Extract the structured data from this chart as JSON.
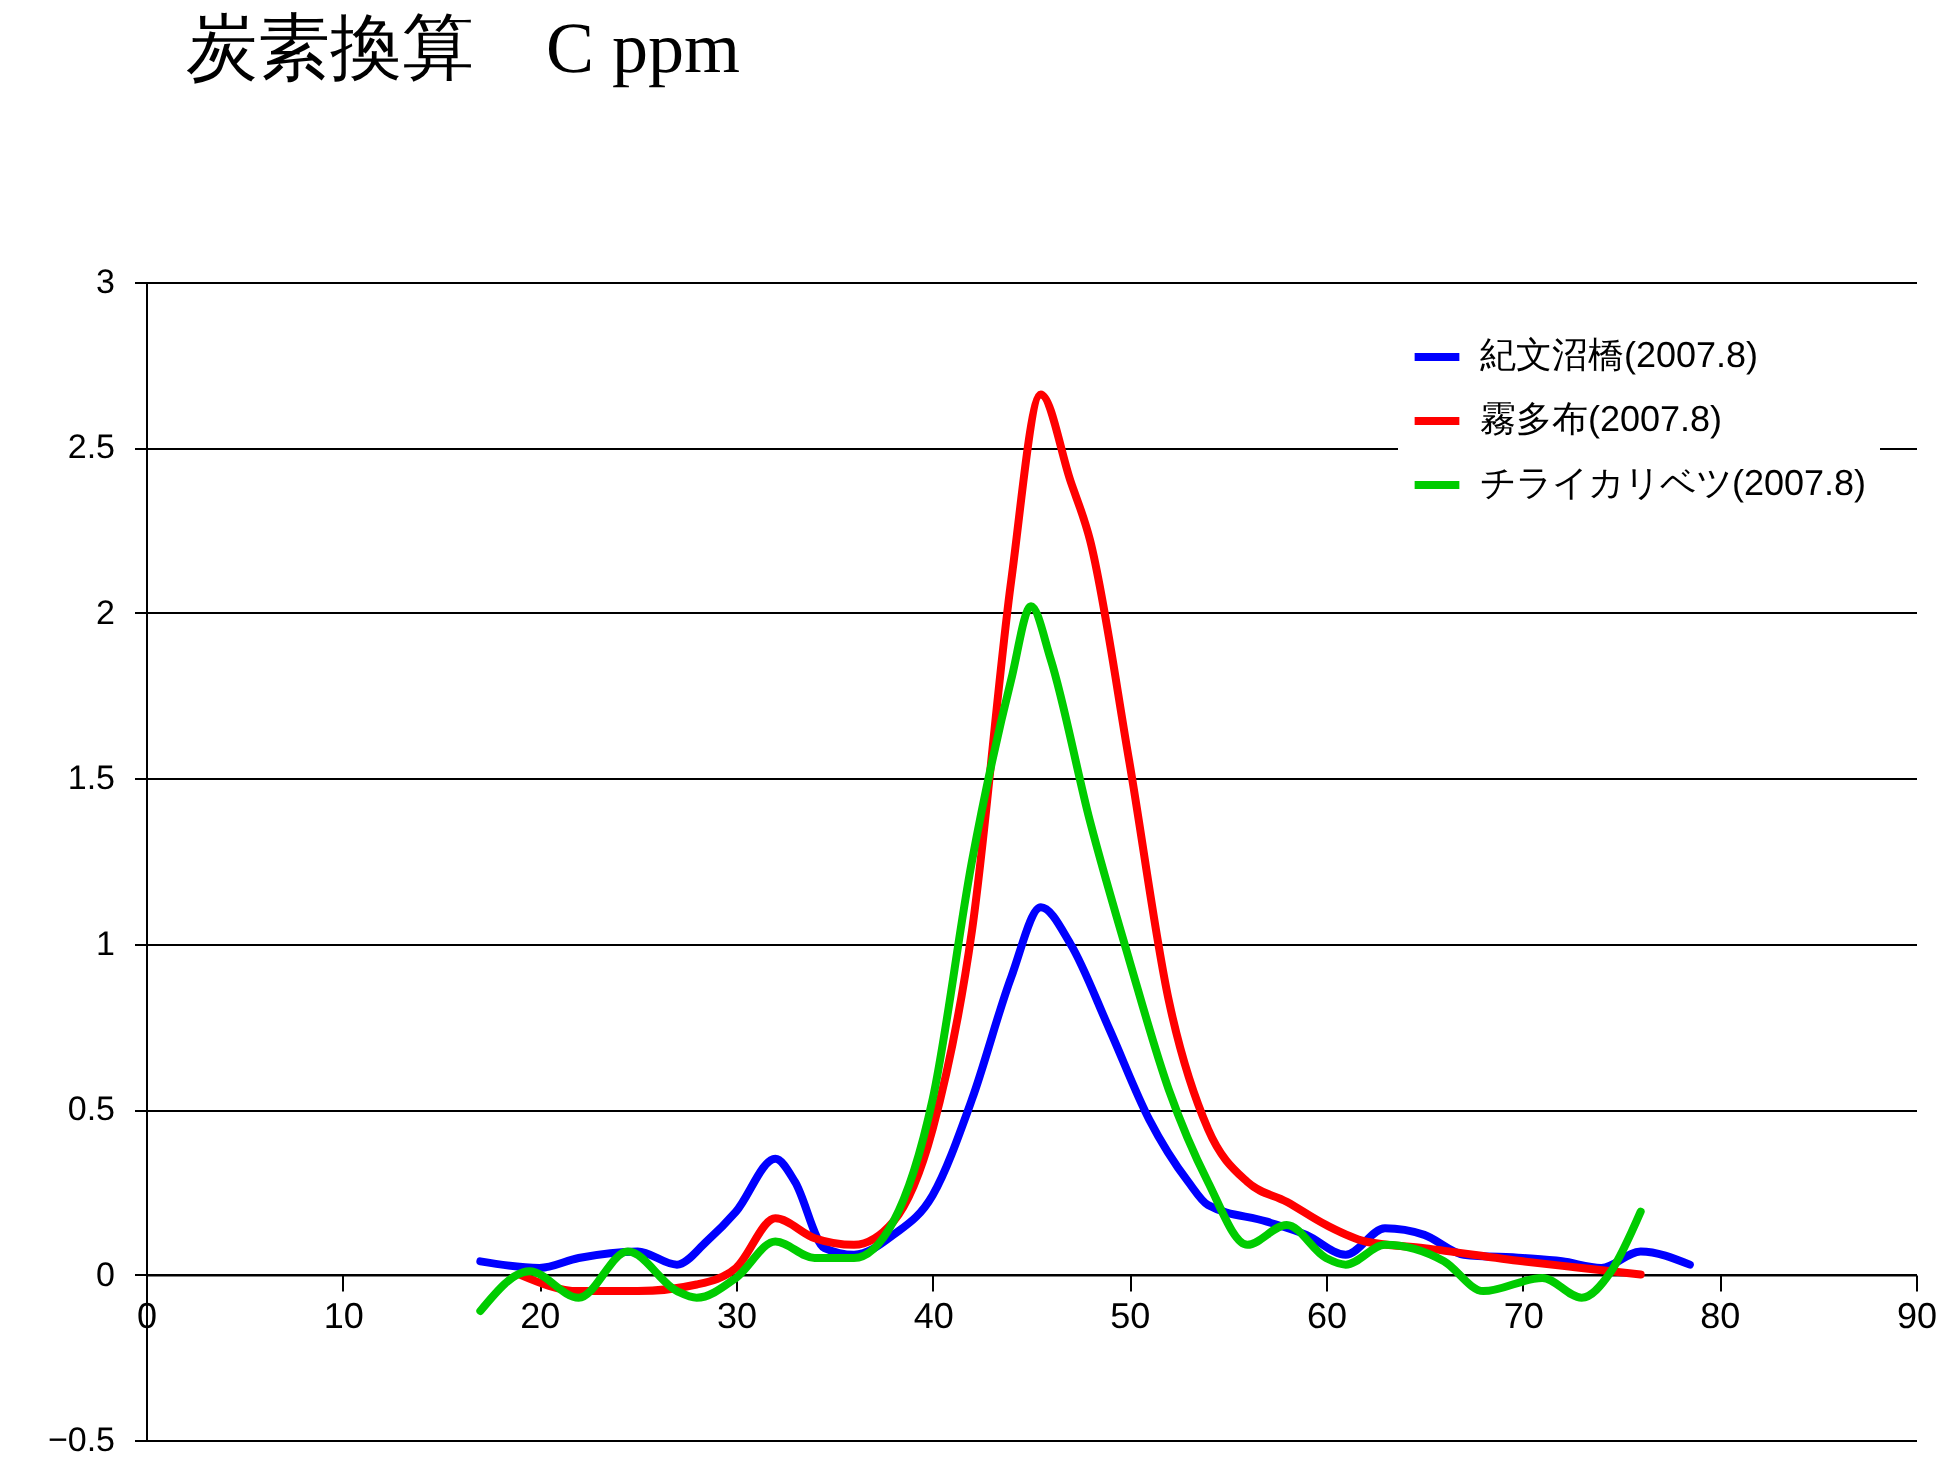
{
  "chart_data": {
    "type": "line",
    "title": "炭素換算　C ppm",
    "xlim": [
      0,
      90
    ],
    "xticks": [
      0,
      10,
      20,
      30,
      40,
      50,
      60,
      70,
      80,
      90
    ],
    "ylim": [
      -0.5,
      3
    ],
    "yticks": [
      -0.5,
      0,
      0.5,
      1,
      1.5,
      2,
      2.5,
      3
    ],
    "grid": "y",
    "legend": "top right",
    "marker": "none",
    "line_style": "solid",
    "series": [
      {
        "name": "紀文沼橋(2007.8)",
        "color": "#0000ff",
        "x": [
          17,
          20,
          22,
          25,
          27,
          28.5,
          30,
          32,
          33,
          34.5,
          36,
          38,
          40,
          42,
          44,
          45.5,
          47,
          49,
          51,
          53,
          54,
          57,
          59,
          61,
          63,
          65,
          67,
          70,
          72,
          74,
          76,
          78.5
        ],
        "values": [
          0.04,
          0.02,
          0.05,
          0.07,
          0.03,
          0.1,
          0.19,
          0.35,
          0.28,
          0.08,
          0.06,
          0.12,
          0.24,
          0.53,
          0.9,
          1.11,
          1.0,
          0.74,
          0.47,
          0.28,
          0.21,
          0.16,
          0.12,
          0.06,
          0.14,
          0.12,
          0.06,
          0.05,
          0.04,
          0.02,
          0.07,
          0.03
        ]
      },
      {
        "name": "霧多布(2007.8)",
        "color": "#ff0000",
        "x": [
          19,
          22,
          25,
          28,
          30,
          32,
          34,
          36,
          38,
          40,
          42,
          44,
          45.5,
          47,
          48,
          50,
          52,
          54,
          56,
          58,
          60,
          62,
          65,
          70,
          73,
          76
        ],
        "values": [
          0,
          -0.05,
          -0.05,
          -0.03,
          0.02,
          0.17,
          0.11,
          0.09,
          0.16,
          0.44,
          1.04,
          2.1,
          2.66,
          2.4,
          2.22,
          1.55,
          0.83,
          0.44,
          0.28,
          0.22,
          0.15,
          0.1,
          0.08,
          0.04,
          0.02,
          0
        ]
      },
      {
        "name": "チライカリベツ(2007.8)",
        "color": "#00cc00",
        "x": [
          17,
          19.5,
          22,
          24.5,
          27,
          28,
          30,
          32,
          34,
          36,
          38,
          40,
          42,
          44,
          45,
          46,
          48,
          50,
          52,
          54,
          56,
          58,
          60,
          61,
          63,
          66,
          68,
          71,
          73,
          74.5,
          76
        ],
        "values": [
          -0.11,
          0.01,
          -0.07,
          0.07,
          -0.05,
          -0.07,
          -0.01,
          0.1,
          0.05,
          0.05,
          0.16,
          0.53,
          1.25,
          1.8,
          2.02,
          1.86,
          1.37,
          0.95,
          0.56,
          0.28,
          0.09,
          0.15,
          0.05,
          0.03,
          0.09,
          0.04,
          -0.05,
          -0.01,
          -0.07,
          0.01,
          0.19
        ]
      }
    ]
  }
}
